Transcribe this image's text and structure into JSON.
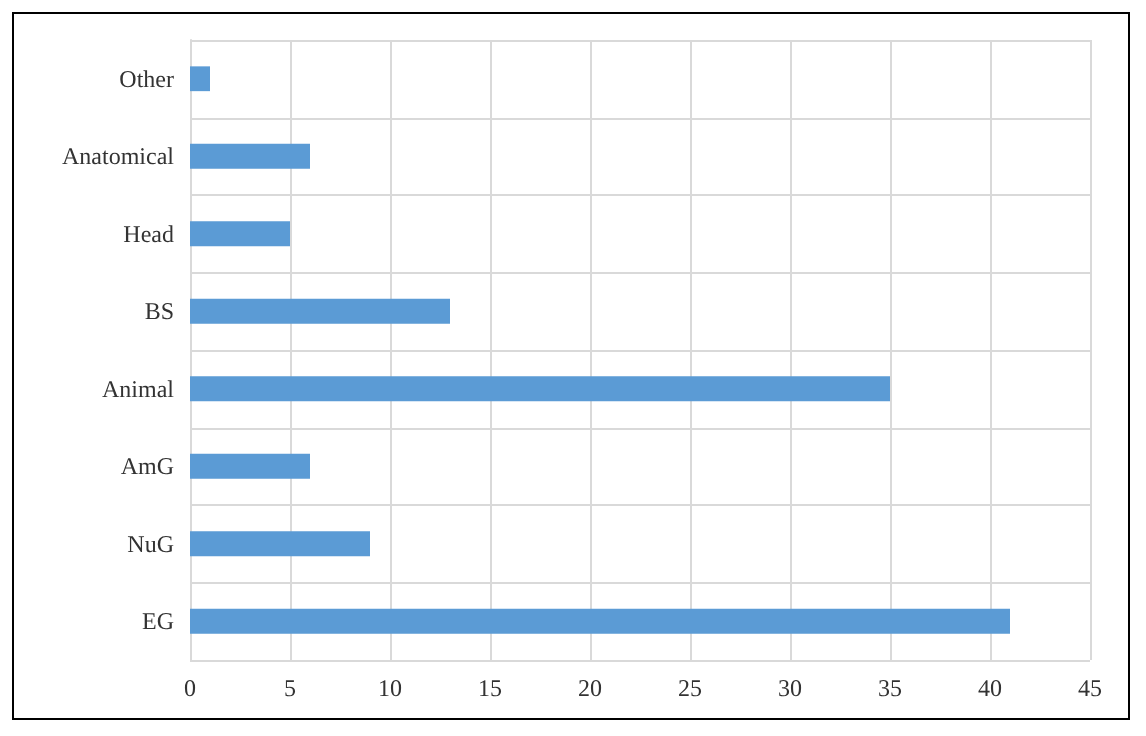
{
  "chart_data": {
    "type": "bar",
    "orientation": "horizontal",
    "categories": [
      "Other",
      "Anatomical",
      "Head",
      "BS",
      "Animal",
      "AmG",
      "NuG",
      "EG"
    ],
    "values": [
      1,
      6,
      5,
      13,
      35,
      6,
      9,
      41
    ],
    "color": "#5b9bd5",
    "xlim": [
      0,
      45
    ],
    "xticks": [
      0,
      5,
      10,
      15,
      20,
      25,
      30,
      35,
      40,
      45
    ],
    "grid": true
  }
}
